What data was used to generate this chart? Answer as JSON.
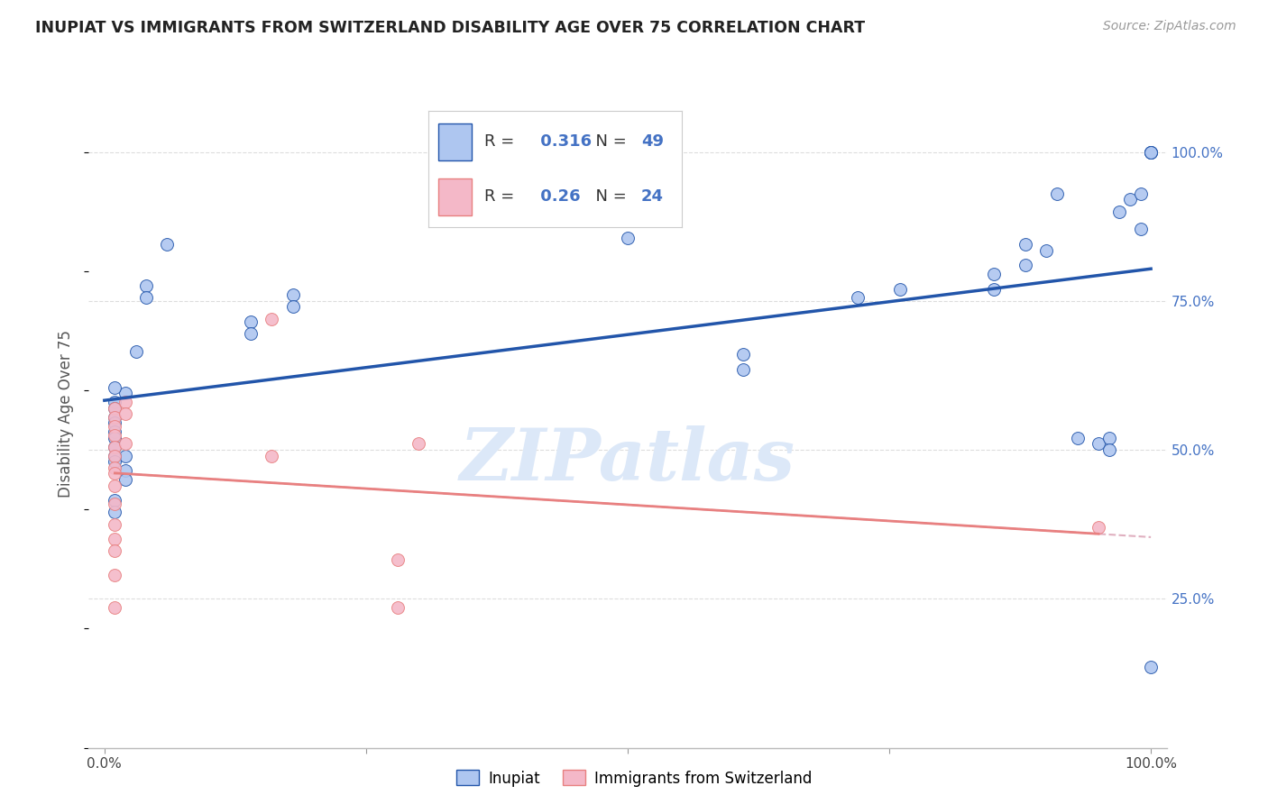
{
  "title": "INUPIAT VS IMMIGRANTS FROM SWITZERLAND DISABILITY AGE OVER 75 CORRELATION CHART",
  "source": "Source: ZipAtlas.com",
  "ylabel": "Disability Age Over 75",
  "legend_label1": "Inupiat",
  "legend_label2": "Immigrants from Switzerland",
  "R1": 0.316,
  "N1": 49,
  "R2": 0.26,
  "N2": 24,
  "inupiat_x": [
    0.02,
    0.06,
    0.04,
    0.04,
    0.01,
    0.01,
    0.01,
    0.01,
    0.01,
    0.01,
    0.02,
    0.02,
    0.02,
    0.03,
    0.14,
    0.14,
    0.18,
    0.18,
    0.5,
    0.5,
    0.61,
    0.61,
    0.72,
    0.76,
    0.85,
    0.85,
    0.88,
    0.88,
    0.9,
    0.91,
    0.93,
    0.95,
    0.96,
    0.96,
    0.97,
    0.98,
    0.99,
    0.99,
    1.0,
    1.0,
    1.0,
    1.0,
    1.0,
    0.01,
    0.01,
    0.01,
    0.01,
    0.01,
    0.01
  ],
  "inupiat_y": [
    0.595,
    0.845,
    0.775,
    0.755,
    0.605,
    0.58,
    0.57,
    0.555,
    0.545,
    0.53,
    0.49,
    0.465,
    0.45,
    0.665,
    0.715,
    0.695,
    0.76,
    0.74,
    0.975,
    0.855,
    0.66,
    0.635,
    0.755,
    0.77,
    0.795,
    0.77,
    0.845,
    0.81,
    0.835,
    0.93,
    0.52,
    0.51,
    0.52,
    0.5,
    0.9,
    0.92,
    0.93,
    0.87,
    1.0,
    1.0,
    1.0,
    1.0,
    0.135,
    0.52,
    0.505,
    0.49,
    0.48,
    0.415,
    0.395
  ],
  "swiss_x": [
    0.01,
    0.01,
    0.01,
    0.01,
    0.01,
    0.01,
    0.01,
    0.01,
    0.01,
    0.02,
    0.02,
    0.02,
    0.16,
    0.16,
    0.28,
    0.28,
    0.3,
    0.95,
    0.01,
    0.01,
    0.01,
    0.01,
    0.01,
    0.01
  ],
  "swiss_y": [
    0.57,
    0.555,
    0.54,
    0.525,
    0.505,
    0.49,
    0.47,
    0.35,
    0.29,
    0.58,
    0.56,
    0.51,
    0.72,
    0.49,
    0.315,
    0.235,
    0.51,
    0.37,
    0.46,
    0.44,
    0.41,
    0.375,
    0.33,
    0.235
  ],
  "color_inupiat": "#aec6f0",
  "color_swiss": "#f4b8c8",
  "line_color_inupiat": "#2255aa",
  "line_color_swiss": "#e88080",
  "line_color_swiss_dash": "#e0b0c0",
  "watermark_text": "ZIPatlas",
  "watermark_color": "#dce8f8",
  "bg_color": "#ffffff",
  "grid_color": "#dddddd",
  "yticks": [
    0.25,
    0.5,
    0.75,
    1.0
  ],
  "ytick_labels": [
    "25.0%",
    "50.0%",
    "75.0%",
    "100.0%"
  ],
  "right_tick_color": "#4472c4"
}
